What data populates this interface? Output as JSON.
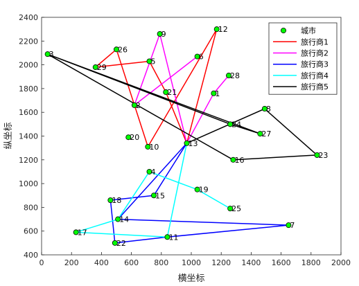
{
  "chart_data": {
    "type": "scatter",
    "xlabel": "横坐标",
    "ylabel": "纵坐标",
    "xlim": [
      0,
      2000
    ],
    "ylim": [
      400,
      2400
    ],
    "xticks": [
      0,
      200,
      400,
      600,
      800,
      1000,
      1200,
      1400,
      1600,
      1800,
      2000
    ],
    "yticks": [
      400,
      600,
      800,
      1000,
      1200,
      1400,
      1600,
      1800,
      2000,
      2200,
      2400
    ],
    "legend_position": "top-right",
    "points": {
      "name": "城市",
      "marker_color": "#00ff00",
      "items": [
        {
          "id": "1",
          "x": 1150,
          "y": 1760
        },
        {
          "id": "2",
          "x": 620,
          "y": 1660
        },
        {
          "id": "3",
          "x": 40,
          "y": 2090
        },
        {
          "id": "4",
          "x": 720,
          "y": 1100
        },
        {
          "id": "5",
          "x": 720,
          "y": 2030
        },
        {
          "id": "6",
          "x": 1040,
          "y": 2070
        },
        {
          "id": "7",
          "x": 1650,
          "y": 650
        },
        {
          "id": "8",
          "x": 1490,
          "y": 1630
        },
        {
          "id": "9",
          "x": 790,
          "y": 2260
        },
        {
          "id": "10",
          "x": 710,
          "y": 1310
        },
        {
          "id": "11",
          "x": 840,
          "y": 550
        },
        {
          "id": "12",
          "x": 1170,
          "y": 2300
        },
        {
          "id": "13",
          "x": 970,
          "y": 1340
        },
        {
          "id": "14",
          "x": 510,
          "y": 700
        },
        {
          "id": "15",
          "x": 750,
          "y": 900
        },
        {
          "id": "16",
          "x": 1280,
          "y": 1200
        },
        {
          "id": "17",
          "x": 230,
          "y": 590
        },
        {
          "id": "18",
          "x": 460,
          "y": 860
        },
        {
          "id": "19",
          "x": 1040,
          "y": 950
        },
        {
          "id": "20",
          "x": 580,
          "y": 1390
        },
        {
          "id": "21",
          "x": 830,
          "y": 1770
        },
        {
          "id": "22",
          "x": 490,
          "y": 500
        },
        {
          "id": "23",
          "x": 1840,
          "y": 1240
        },
        {
          "id": "24",
          "x": 1260,
          "y": 1500
        },
        {
          "id": "25",
          "x": 1260,
          "y": 790
        },
        {
          "id": "26",
          "x": 500,
          "y": 2130
        },
        {
          "id": "27",
          "x": 1460,
          "y": 1420
        },
        {
          "id": "28",
          "x": 1250,
          "y": 1910
        },
        {
          "id": "29",
          "x": 360,
          "y": 1980
        }
      ]
    },
    "series": [
      {
        "name": "旅行商1",
        "color": "#ff0000",
        "route": [
          "12",
          "10",
          "26",
          "29",
          "5",
          "21",
          "13",
          "12"
        ]
      },
      {
        "name": "旅行商2",
        "color": "#ff00ff",
        "route": [
          "6",
          "2",
          "9",
          "13",
          "1",
          "28"
        ]
      },
      {
        "name": "旅行商3",
        "color": "#0000ff",
        "route": [
          "13",
          "15",
          "18",
          "22",
          "11",
          "7",
          "14",
          "13"
        ]
      },
      {
        "name": "旅行商4",
        "color": "#00ffff",
        "route": [
          "13",
          "11",
          "17",
          "14",
          "4",
          "19",
          "25"
        ]
      },
      {
        "name": "旅行商5",
        "color": "#000000",
        "route": [
          "3",
          "24",
          "27",
          "3",
          "16",
          "23",
          "8",
          "13"
        ]
      }
    ]
  }
}
